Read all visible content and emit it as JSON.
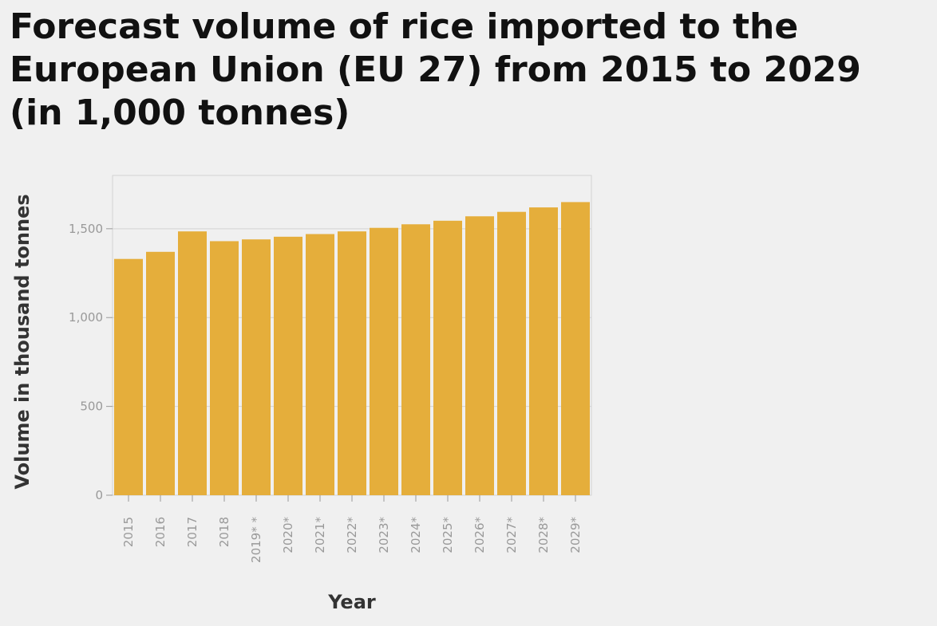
{
  "chart_data": {
    "type": "bar",
    "title": "Forecast volume of rice imported to the European Union (EU 27) from 2015 to 2029 (in 1,000 tonnes)",
    "title_lines": [
      "Forecast volume of rice imported to the",
      "European Union (EU 27) from 2015 to 2029",
      "(in 1,000 tonnes)"
    ],
    "xlabel": "Year",
    "ylabel": "Volume in thousand tonnes",
    "categories": [
      "2015",
      "2016",
      "2017",
      "2018",
      "2019* *",
      "2020*",
      "2021*",
      "2022*",
      "2023*",
      "2024*",
      "2025*",
      "2026*",
      "2027*",
      "2028*",
      "2029*"
    ],
    "values": [
      1330,
      1370,
      1485,
      1430,
      1440,
      1455,
      1470,
      1485,
      1505,
      1525,
      1545,
      1570,
      1595,
      1620,
      1650
    ],
    "ylim": [
      0,
      1800
    ],
    "yticks": [
      0,
      500,
      1000,
      1500
    ],
    "ytick_labels": [
      "0",
      "500",
      "1,000",
      "1,500"
    ],
    "grid": true,
    "legend": false,
    "colors": {
      "bar": "#e5ae3b",
      "grid": "#d2d2d2",
      "background": "#f0f0f0"
    }
  }
}
